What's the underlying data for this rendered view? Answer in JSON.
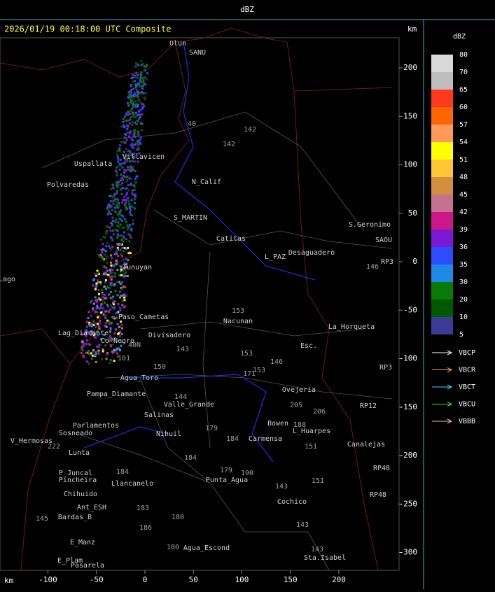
{
  "header": {
    "title": "dBZ"
  },
  "map": {
    "title": "2026/01/19 00:18:00 UTC Composite",
    "y_axis_unit": "km",
    "x_axis_unit": "km",
    "y_axis_ticks": [
      200,
      150,
      100,
      50,
      0,
      -50,
      -100,
      -150,
      -200,
      -250,
      -300
    ],
    "x_axis_ticks": [
      -100,
      -50,
      0,
      50,
      100,
      150,
      200
    ],
    "places": [
      "Olun",
      "SANU",
      "Villavicen",
      "Uspallata",
      "Polvaredas",
      "N_Calif",
      "S_MARTIN",
      "Catitas",
      "L_PAZ",
      "Desaguadero",
      "S.Geronimo",
      "SAOU",
      "RP3",
      "Paso_Cametas",
      "Lag_Diamante",
      "Co_Negro",
      "Divisadero",
      "Nacunan",
      "La_Horqueta",
      "Esc.",
      "Agua_Toro",
      "Pampa_Diamante",
      "Valle_Grande",
      "Salinas",
      "Parlamentos",
      "Sosneado",
      "V_Hermosas",
      "Ovejeria",
      "Nihuil",
      "Lunta",
      "P_Juncal",
      "Pincheira",
      "Llancanelo",
      "Chihuido",
      "Ant_ESH",
      "Bardas_B",
      "E_Manz",
      "E_Plam",
      "Pasarela",
      "Agua_Escond",
      "Punta_Agua",
      "Carmensa",
      "L_Huarpes",
      "Canalejas",
      "Cochico",
      "Sta.Isabel",
      "Bowen",
      "RP3",
      "RP12",
      "RP48",
      "RP48",
      "Tunuyan",
      "Lago"
    ],
    "routes": [
      "142",
      "142",
      "40",
      "153",
      "143",
      "153",
      "150",
      "146",
      "144",
      "205",
      "206",
      "188",
      "151",
      "179",
      "184",
      "184",
      "179",
      "190",
      "151",
      "143",
      "143",
      "143",
      "180",
      "180",
      "186",
      "183",
      "222",
      "184",
      "145",
      "146",
      "40N",
      "101",
      "171",
      "153"
    ]
  },
  "colorbar": {
    "title": "dBZ",
    "labels": [
      80,
      70,
      65,
      60,
      57,
      54,
      51,
      48,
      45,
      42,
      39,
      36,
      35,
      30,
      20,
      10,
      5
    ],
    "colors": [
      "#d9d9d9",
      "#bdbdbd",
      "#ff3a1c",
      "#ff6600",
      "#ff9a5c",
      "#ffff00",
      "#ffc534",
      "#d38e3e",
      "#c57190",
      "#cc168a",
      "#7a18d4",
      "#2b4cff",
      "#1e8ae6",
      "#0a7a0a",
      "#005800",
      "#3c3c96"
    ]
  },
  "legend": [
    {
      "name": "VBCP",
      "color": "#ffffff"
    },
    {
      "name": "VBCR",
      "color": "#ffa040"
    },
    {
      "name": "VBCT",
      "color": "#40d8ff"
    },
    {
      "name": "VBCU",
      "color": "#40e040"
    },
    {
      "name": "VBBB",
      "color": "#ffb0c0"
    }
  ]
}
